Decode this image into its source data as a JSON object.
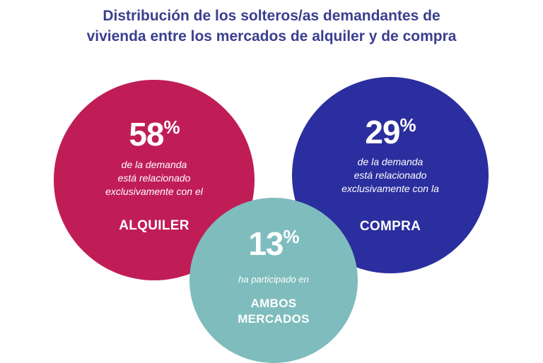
{
  "title": {
    "line1": "Distribución de los solteros/as demandantes de",
    "line2": "vivienda entre los mercados de alquiler y de compra"
  },
  "circles": {
    "alquiler": {
      "percent": "58",
      "percent_sign": "%",
      "description": [
        "de la demanda",
        "está relacionado",
        "exclusivamente con el"
      ],
      "market": [
        "ALQUILER"
      ],
      "color": "#c01d57"
    },
    "compra": {
      "percent": "29",
      "percent_sign": "%",
      "description": [
        "de la demanda",
        "está relacionado",
        "exclusivamente con la"
      ],
      "market": [
        "COMPRA"
      ],
      "color": "#2a2e9e"
    },
    "ambos": {
      "percent": "13",
      "percent_sign": "%",
      "description": [
        "ha participado en"
      ],
      "market": [
        "AMBOS",
        "MERCADOS"
      ],
      "color": "#7fbcbd"
    }
  },
  "colors": {
    "title": "#3a3f8f",
    "text_on_circle": "#ffffff"
  }
}
